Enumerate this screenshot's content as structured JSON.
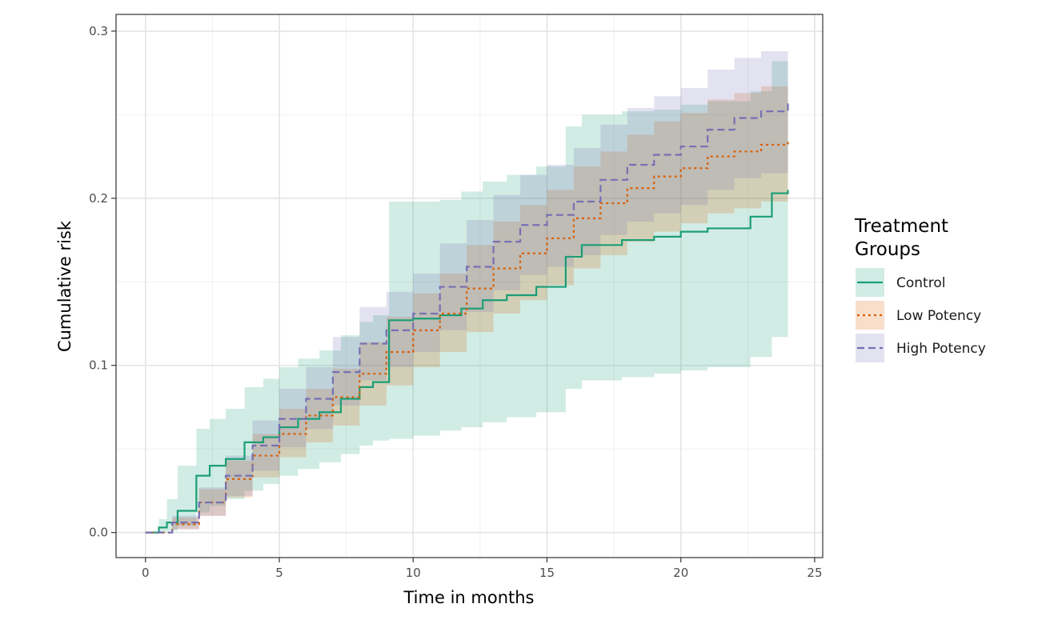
{
  "chart_data": {
    "type": "line",
    "xlabel": "Time in months",
    "ylabel": "Cumulative risk",
    "xlim": [
      -1.1,
      25.3
    ],
    "ylim": [
      -0.015,
      0.31
    ],
    "x_ticks": [
      0,
      5,
      10,
      15,
      20,
      25
    ],
    "x_tick_labels": [
      "0",
      "5",
      "10",
      "15",
      "20",
      "25"
    ],
    "y_ticks": [
      0.0,
      0.1,
      0.2,
      0.3
    ],
    "y_tick_labels": [
      "0.0",
      "0.1",
      "0.2",
      "0.3"
    ],
    "grid": true,
    "step": true,
    "legend": {
      "title_lines": [
        "Treatment",
        "Groups"
      ],
      "position": "right"
    },
    "series": [
      {
        "name": "Control",
        "color": "#1b9e77",
        "dash": "solid",
        "x": [
          0,
          0.5,
          0.8,
          1.2,
          1.9,
          2.4,
          3.0,
          3.7,
          4.4,
          5.0,
          5.7,
          6.5,
          7.3,
          8.0,
          8.5,
          9.1,
          10.0,
          11.0,
          11.8,
          12.6,
          13.5,
          14.6,
          15.7,
          16.3,
          17.8,
          19.0,
          20.0,
          21.0,
          22.6,
          23.4,
          24.0
        ],
        "y": [
          0,
          0.003,
          0.006,
          0.013,
          0.034,
          0.04,
          0.044,
          0.054,
          0.057,
          0.063,
          0.068,
          0.072,
          0.08,
          0.087,
          0.09,
          0.127,
          0.128,
          0.13,
          0.134,
          0.139,
          0.142,
          0.147,
          0.165,
          0.172,
          0.175,
          0.177,
          0.18,
          0.182,
          0.189,
          0.203,
          0.205
        ],
        "lower": [
          0,
          0.0,
          0.001,
          0.004,
          0.012,
          0.016,
          0.02,
          0.025,
          0.029,
          0.034,
          0.038,
          0.042,
          0.047,
          0.052,
          0.055,
          0.056,
          0.058,
          0.061,
          0.063,
          0.066,
          0.069,
          0.072,
          0.086,
          0.091,
          0.093,
          0.095,
          0.097,
          0.099,
          0.105,
          0.117,
          0.119
        ],
        "upper": [
          0,
          0.008,
          0.02,
          0.04,
          0.062,
          0.068,
          0.074,
          0.087,
          0.092,
          0.099,
          0.104,
          0.109,
          0.118,
          0.126,
          0.13,
          0.198,
          0.198,
          0.199,
          0.204,
          0.21,
          0.214,
          0.219,
          0.243,
          0.25,
          0.252,
          0.253,
          0.256,
          0.258,
          0.264,
          0.282,
          0.285
        ]
      },
      {
        "name": "Low Potency",
        "color": "#d95f02",
        "dash": "dotted",
        "x": [
          0,
          1,
          2,
          3,
          4,
          5,
          6,
          7,
          8,
          9,
          10,
          11,
          12,
          13,
          14,
          15,
          16,
          17,
          18,
          19,
          20,
          21,
          22,
          23,
          24
        ],
        "y": [
          0,
          0.005,
          0.018,
          0.032,
          0.046,
          0.059,
          0.07,
          0.081,
          0.095,
          0.108,
          0.121,
          0.131,
          0.146,
          0.158,
          0.167,
          0.176,
          0.188,
          0.197,
          0.206,
          0.213,
          0.218,
          0.225,
          0.228,
          0.232,
          0.235
        ],
        "lower": [
          0,
          0.002,
          0.01,
          0.021,
          0.033,
          0.045,
          0.054,
          0.064,
          0.076,
          0.088,
          0.099,
          0.108,
          0.12,
          0.131,
          0.139,
          0.148,
          0.158,
          0.166,
          0.174,
          0.18,
          0.185,
          0.191,
          0.194,
          0.198,
          0.201
        ],
        "upper": [
          0,
          0.009,
          0.026,
          0.043,
          0.059,
          0.074,
          0.086,
          0.098,
          0.114,
          0.129,
          0.143,
          0.155,
          0.172,
          0.186,
          0.196,
          0.205,
          0.219,
          0.228,
          0.238,
          0.246,
          0.251,
          0.259,
          0.263,
          0.267,
          0.27
        ]
      },
      {
        "name": "High Potency",
        "color": "#7570b3",
        "dash": "dashed",
        "x": [
          0,
          1,
          2,
          3,
          4,
          5,
          6,
          7,
          8,
          9,
          10,
          11,
          12,
          13,
          14,
          15,
          16,
          17,
          18,
          19,
          20,
          21,
          22,
          23,
          24
        ],
        "y": [
          0,
          0.006,
          0.018,
          0.034,
          0.052,
          0.068,
          0.08,
          0.096,
          0.113,
          0.121,
          0.131,
          0.147,
          0.159,
          0.174,
          0.184,
          0.19,
          0.198,
          0.211,
          0.22,
          0.226,
          0.231,
          0.241,
          0.248,
          0.252,
          0.258
        ],
        "lower": [
          0,
          0.002,
          0.01,
          0.022,
          0.037,
          0.051,
          0.062,
          0.076,
          0.091,
          0.099,
          0.108,
          0.121,
          0.132,
          0.145,
          0.154,
          0.159,
          0.166,
          0.178,
          0.186,
          0.191,
          0.196,
          0.205,
          0.212,
          0.215,
          0.22
        ],
        "upper": [
          0,
          0.01,
          0.027,
          0.046,
          0.067,
          0.086,
          0.099,
          0.117,
          0.135,
          0.144,
          0.155,
          0.173,
          0.187,
          0.202,
          0.214,
          0.22,
          0.23,
          0.244,
          0.254,
          0.261,
          0.266,
          0.277,
          0.284,
          0.288,
          0.293
        ]
      }
    ]
  }
}
